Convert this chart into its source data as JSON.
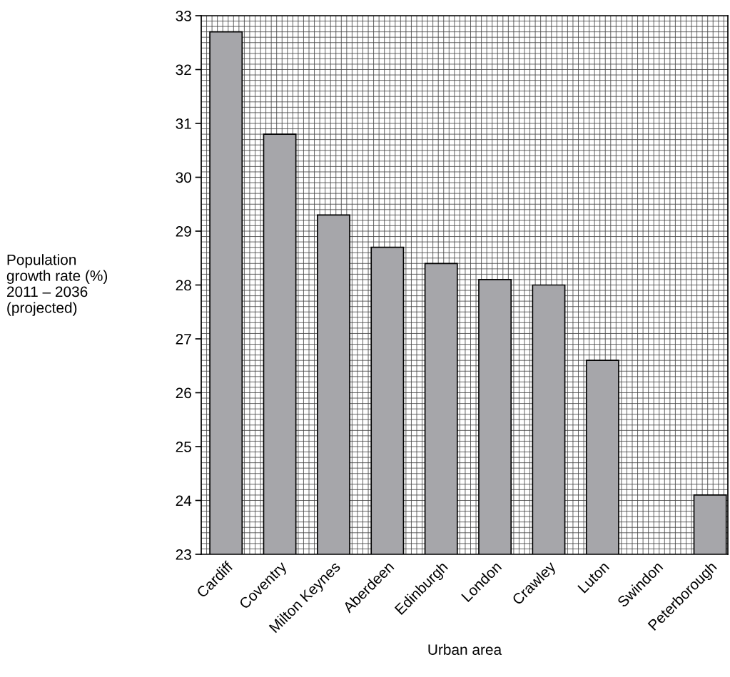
{
  "chart_data": {
    "type": "bar",
    "xlabel": "Urban area",
    "ylabel": "Population\ngrowth rate (%)\n2011 – 2036\n(projected)",
    "categories": [
      "Cardiff",
      "Coventry",
      "Milton Keynes",
      "Aberdeen",
      "Edinburgh",
      "London",
      "Crawley",
      "Luton",
      "Swindon",
      "Peterborough"
    ],
    "values": [
      32.7,
      30.8,
      29.3,
      28.7,
      28.4,
      28.1,
      28.0,
      26.6,
      null,
      24.1
    ],
    "color": "#a6a6aa",
    "ylim": [
      23,
      33
    ],
    "yticks": [
      23,
      24,
      25,
      26,
      27,
      28,
      29,
      30,
      31,
      32,
      33
    ],
    "grid": true
  }
}
